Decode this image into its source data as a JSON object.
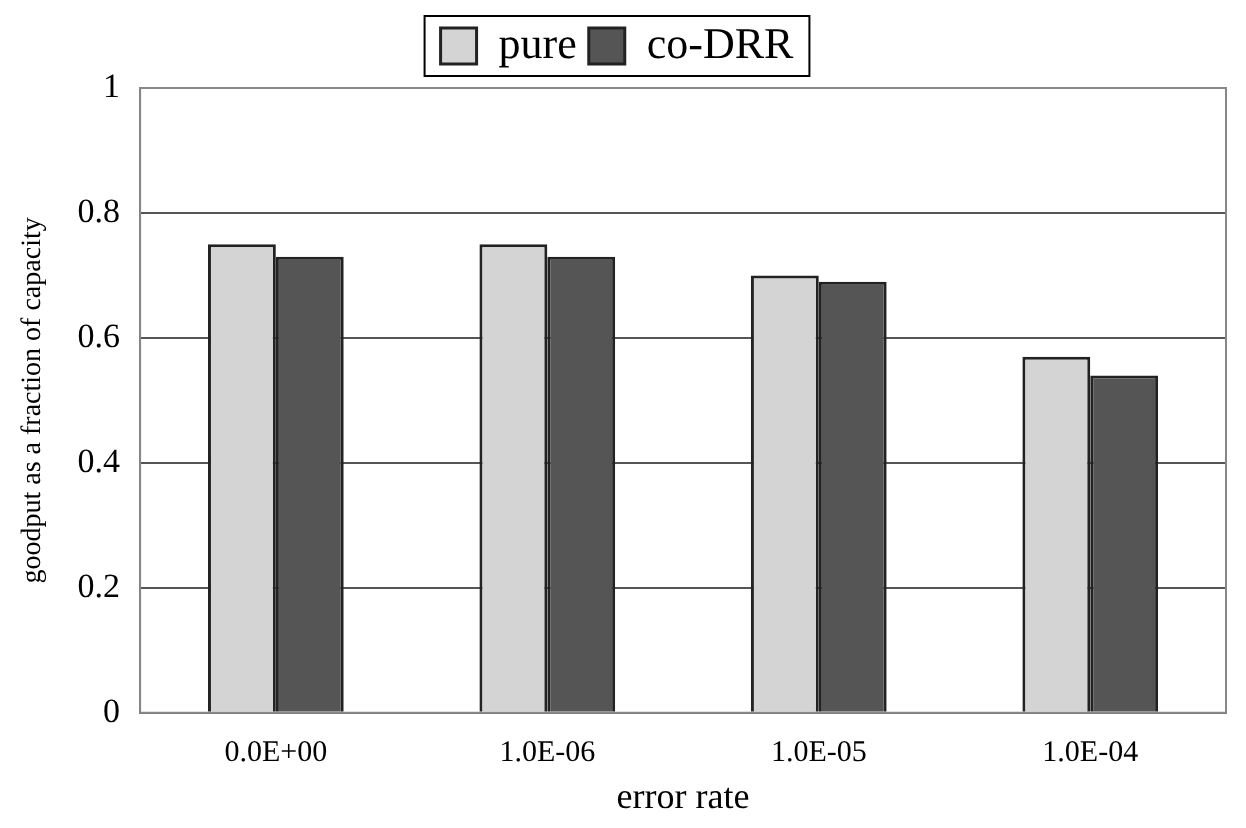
{
  "chart_data": {
    "type": "bar",
    "xlabel": "error rate",
    "ylabel": "goodput as a fraction of capacity",
    "categories": [
      "0.0E+00",
      "1.0E-06",
      "1.0E-05",
      "1.0E-04"
    ],
    "series": [
      {
        "name": "pure",
        "color": "#d4d4d4",
        "values": [
          0.75,
          0.75,
          0.7,
          0.57
        ]
      },
      {
        "name": "co-DRR",
        "color": "#555555",
        "values": [
          0.73,
          0.73,
          0.69,
          0.54
        ]
      }
    ],
    "ylim": [
      0,
      1
    ],
    "yticks": [
      0,
      0.2,
      0.4,
      0.6,
      0.8,
      1
    ],
    "grid": "y",
    "legend": "top"
  }
}
